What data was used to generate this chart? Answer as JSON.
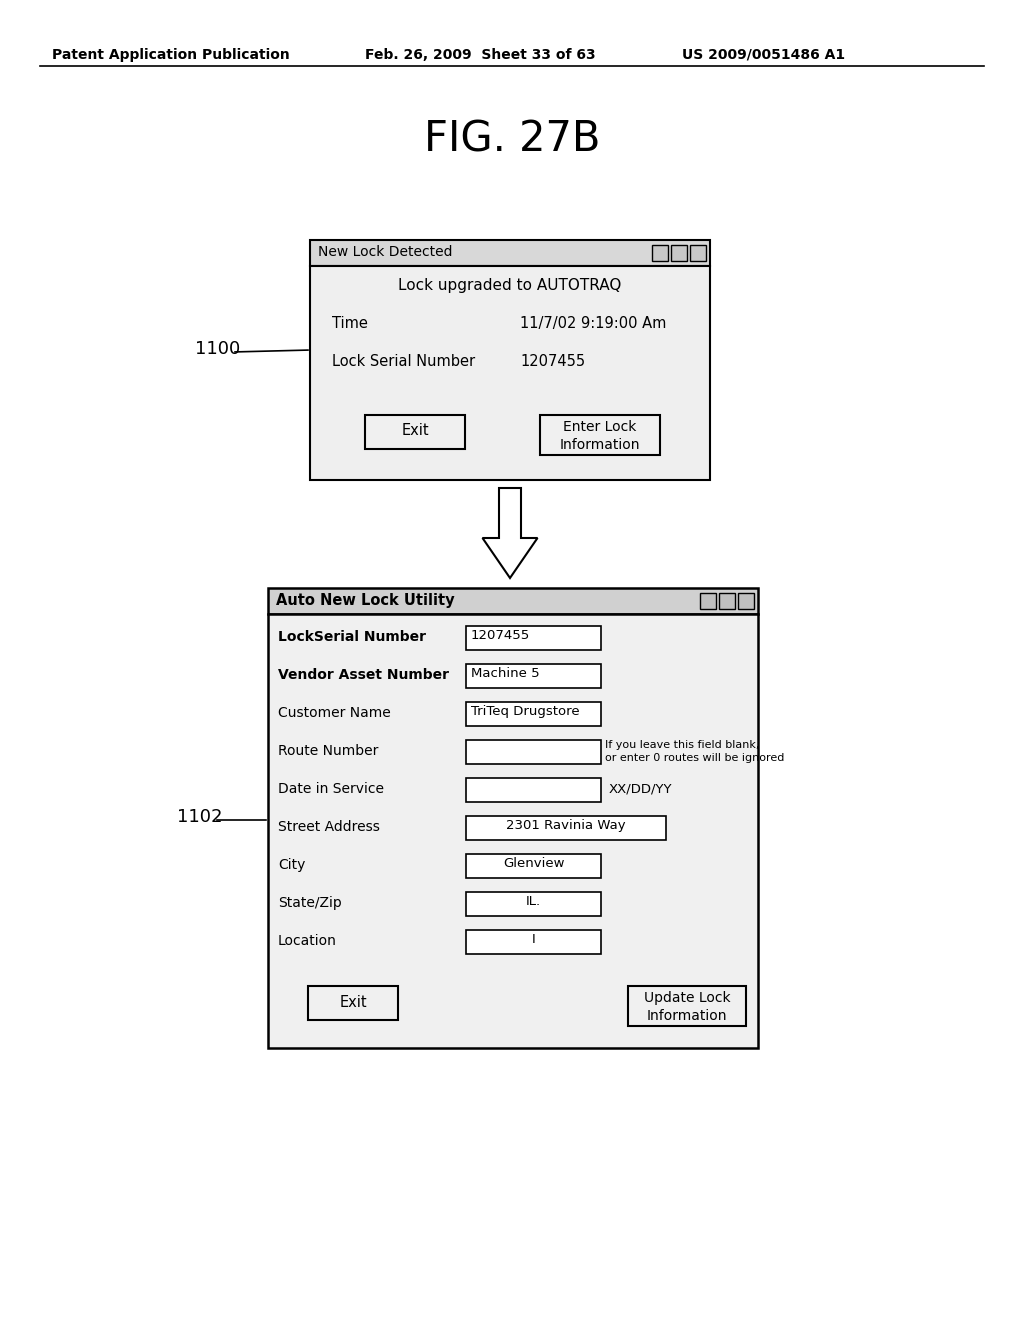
{
  "bg_color": "#ffffff",
  "header_left": "Patent Application Publication",
  "header_mid": "Feb. 26, 2009  Sheet 33 of 63",
  "header_right": "US 2009/0051486 A1",
  "fig_title": "FIG. 27B",
  "dialog1": {
    "title": "New Lock Detected",
    "subtitle": "Lock upgraded to AUTOTRAQ",
    "fields": [
      {
        "label": "Time",
        "value": "11/7/02 9:19:00 Am"
      },
      {
        "label": "Lock Serial Number",
        "value": "1207455"
      }
    ],
    "buttons": [
      "Exit",
      "Enter Lock\nInformation"
    ],
    "label": "1100"
  },
  "dialog2": {
    "title": "Auto New Lock Utility",
    "fields": [
      {
        "label": "LockSerial Number",
        "input": "1207455",
        "wide": false,
        "center": false
      },
      {
        "label": "Vendor Asset Number",
        "input": "Machine 5",
        "wide": false,
        "center": false
      },
      {
        "label": "Customer Name",
        "input": "TriTeq Drugstore",
        "wide": false,
        "center": false
      },
      {
        "label": "Route Number",
        "input": "",
        "wide": false,
        "center": false,
        "note": "If you leave this field blank,\nor enter 0 routes will be ignored"
      },
      {
        "label": "Date in Service",
        "input": "",
        "wide": false,
        "center": false,
        "note2": "XX/DD/YY"
      },
      {
        "label": "Street Address",
        "input": "2301 Ravinia Way",
        "wide": true,
        "center": true
      },
      {
        "label": "City",
        "input": "Glenview",
        "wide": false,
        "center": true
      },
      {
        "label": "State/Zip",
        "input": "IL.",
        "wide": false,
        "center": true
      },
      {
        "label": "Location",
        "input": "I",
        "wide": false,
        "center": true
      }
    ],
    "buttons": [
      "Exit",
      "Update Lock\nInformation"
    ],
    "label": "1102"
  }
}
